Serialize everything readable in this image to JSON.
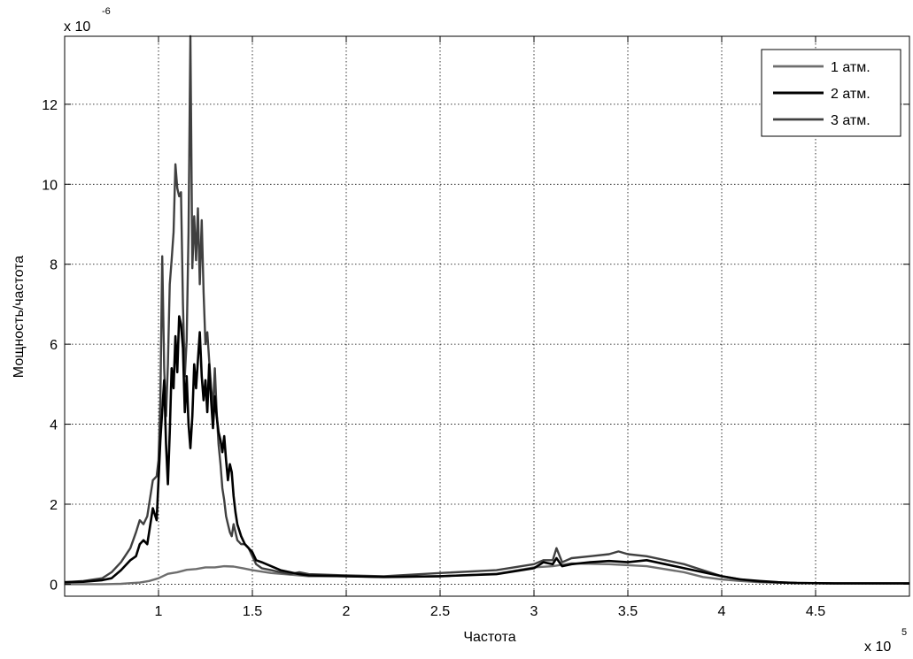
{
  "chart_data": {
    "type": "line",
    "title": "",
    "xlabel": "Частота",
    "ylabel": "Мощность/частота",
    "x_exponent_label": "x 10",
    "x_exponent_power": "5",
    "y_exponent_label": "x 10",
    "y_exponent_power": "-6",
    "xlim": [
      0.5,
      5.0
    ],
    "ylim": [
      -0.3,
      13.7
    ],
    "xticks": [
      1,
      1.5,
      2,
      2.5,
      3,
      3.5,
      4,
      4.5
    ],
    "xtick_labels": [
      "1",
      "1.5",
      "2",
      "2.5",
      "3",
      "3.5",
      "4",
      "4.5"
    ],
    "yticks": [
      0,
      2,
      4,
      6,
      8,
      10,
      12
    ],
    "ytick_labels": [
      "0",
      "2",
      "4",
      "6",
      "8",
      "10",
      "12"
    ],
    "grid": true,
    "legend_position": "top-right",
    "series": [
      {
        "name": "1 атм.",
        "color": "#6e6e6e",
        "width": 2.4,
        "x": [
          0.5,
          0.7,
          0.8,
          0.9,
          0.95,
          1.0,
          1.05,
          1.1,
          1.15,
          1.2,
          1.25,
          1.3,
          1.35,
          1.4,
          1.45,
          1.5,
          1.6,
          1.7,
          1.8,
          2.0,
          2.2,
          2.5,
          2.8,
          3.0,
          3.1,
          3.2,
          3.4,
          3.6,
          3.8,
          3.9,
          4.0,
          4.1,
          4.2,
          4.4,
          4.6,
          5.0
        ],
        "y": [
          0.0,
          0.0,
          0.01,
          0.04,
          0.08,
          0.15,
          0.26,
          0.3,
          0.36,
          0.38,
          0.42,
          0.42,
          0.45,
          0.44,
          0.4,
          0.35,
          0.28,
          0.24,
          0.2,
          0.2,
          0.18,
          0.2,
          0.26,
          0.42,
          0.45,
          0.52,
          0.5,
          0.45,
          0.3,
          0.18,
          0.12,
          0.08,
          0.05,
          0.03,
          0.02,
          0.02
        ]
      },
      {
        "name": "2 атм.",
        "color": "#000000",
        "width": 2.6,
        "x": [
          0.5,
          0.6,
          0.7,
          0.75,
          0.8,
          0.85,
          0.88,
          0.9,
          0.92,
          0.94,
          0.95,
          0.97,
          0.99,
          1.0,
          1.01,
          1.03,
          1.04,
          1.05,
          1.06,
          1.07,
          1.08,
          1.09,
          1.1,
          1.11,
          1.12,
          1.13,
          1.14,
          1.15,
          1.16,
          1.17,
          1.18,
          1.19,
          1.2,
          1.21,
          1.22,
          1.23,
          1.24,
          1.25,
          1.26,
          1.27,
          1.28,
          1.29,
          1.3,
          1.31,
          1.32,
          1.33,
          1.34,
          1.35,
          1.36,
          1.37,
          1.38,
          1.39,
          1.4,
          1.41,
          1.42,
          1.44,
          1.46,
          1.48,
          1.5,
          1.52,
          1.55,
          1.6,
          1.65,
          1.7,
          1.75,
          1.8,
          2.0,
          2.2,
          2.5,
          2.8,
          3.0,
          3.05,
          3.1,
          3.12,
          3.15,
          3.2,
          3.3,
          3.4,
          3.5,
          3.6,
          3.7,
          3.8,
          3.9,
          4.0,
          4.1,
          4.2,
          4.3,
          4.4,
          4.6,
          5.0
        ],
        "y": [
          0.05,
          0.06,
          0.1,
          0.15,
          0.35,
          0.6,
          0.7,
          1.0,
          1.1,
          1.0,
          1.3,
          1.9,
          1.6,
          2.6,
          3.6,
          5.1,
          3.5,
          2.5,
          3.8,
          5.4,
          4.9,
          6.2,
          5.3,
          6.7,
          6.5,
          5.9,
          4.3,
          5.2,
          4.0,
          3.4,
          4.2,
          5.5,
          4.9,
          5.6,
          6.3,
          5.2,
          4.6,
          5.1,
          4.3,
          5.5,
          4.6,
          3.9,
          4.7,
          4.2,
          3.8,
          3.6,
          3.3,
          3.7,
          3.1,
          2.6,
          3.0,
          2.8,
          2.2,
          1.8,
          1.5,
          1.2,
          1.0,
          0.9,
          0.8,
          0.6,
          0.55,
          0.45,
          0.35,
          0.3,
          0.25,
          0.22,
          0.2,
          0.18,
          0.2,
          0.25,
          0.4,
          0.55,
          0.5,
          0.65,
          0.45,
          0.5,
          0.55,
          0.58,
          0.55,
          0.6,
          0.5,
          0.4,
          0.3,
          0.2,
          0.12,
          0.08,
          0.05,
          0.03,
          0.02,
          0.02
        ]
      },
      {
        "name": "3 атм.",
        "color": "#404040",
        "width": 2.4,
        "x": [
          0.5,
          0.6,
          0.7,
          0.75,
          0.8,
          0.85,
          0.88,
          0.9,
          0.92,
          0.94,
          0.95,
          0.97,
          0.99,
          1.0,
          1.01,
          1.02,
          1.03,
          1.04,
          1.05,
          1.06,
          1.07,
          1.08,
          1.09,
          1.1,
          1.11,
          1.12,
          1.13,
          1.14,
          1.15,
          1.16,
          1.17,
          1.18,
          1.19,
          1.2,
          1.21,
          1.22,
          1.23,
          1.24,
          1.25,
          1.26,
          1.27,
          1.28,
          1.29,
          1.3,
          1.31,
          1.32,
          1.33,
          1.34,
          1.35,
          1.36,
          1.37,
          1.38,
          1.39,
          1.4,
          1.42,
          1.44,
          1.46,
          1.48,
          1.5,
          1.52,
          1.55,
          1.6,
          1.65,
          1.7,
          1.75,
          1.8,
          2.0,
          2.2,
          2.5,
          2.8,
          3.0,
          3.05,
          3.1,
          3.12,
          3.15,
          3.2,
          3.3,
          3.4,
          3.45,
          3.5,
          3.6,
          3.7,
          3.8,
          3.9,
          4.0,
          4.1,
          4.2,
          4.3,
          4.4,
          4.6,
          5.0
        ],
        "y": [
          0.05,
          0.08,
          0.15,
          0.3,
          0.55,
          0.9,
          1.3,
          1.6,
          1.5,
          1.7,
          2.0,
          2.6,
          2.7,
          3.1,
          4.6,
          8.2,
          5.4,
          4.2,
          5.5,
          7.5,
          8.1,
          8.8,
          10.5,
          9.9,
          9.7,
          9.8,
          7.0,
          5.2,
          6.1,
          8.8,
          13.7,
          7.9,
          9.2,
          8.1,
          9.4,
          7.5,
          9.1,
          7.3,
          6.0,
          6.3,
          5.6,
          4.9,
          4.4,
          5.4,
          4.3,
          3.5,
          3.0,
          2.4,
          2.1,
          1.7,
          1.5,
          1.3,
          1.2,
          1.5,
          1.1,
          1.0,
          1.0,
          0.9,
          0.7,
          0.5,
          0.4,
          0.35,
          0.3,
          0.25,
          0.3,
          0.25,
          0.22,
          0.2,
          0.28,
          0.35,
          0.5,
          0.6,
          0.6,
          0.9,
          0.55,
          0.65,
          0.7,
          0.75,
          0.82,
          0.75,
          0.7,
          0.6,
          0.5,
          0.35,
          0.2,
          0.12,
          0.06,
          0.04,
          0.03,
          0.02,
          0.02
        ]
      }
    ]
  }
}
